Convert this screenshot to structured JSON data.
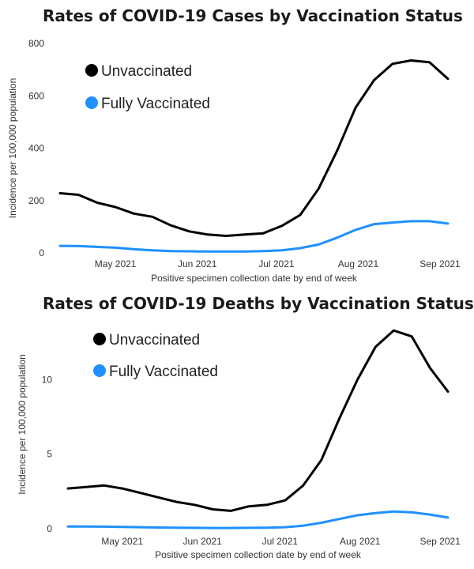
{
  "chart_data": [
    {
      "type": "line",
      "title": "Rates of COVID-19 Cases by Vaccination Status",
      "xlabel": "Positive specimen collection date by end of week",
      "ylabel": "Incidence per 100,000 population",
      "ylim": [
        0,
        800
      ],
      "yticks": [
        0,
        200,
        400,
        600,
        800
      ],
      "xticks": [
        "May 2021",
        "Jun 2021",
        "Jul 2021",
        "Aug 2021",
        "Sep 2021"
      ],
      "x": [
        "2021-04-10",
        "2021-04-17",
        "2021-04-24",
        "2021-05-01",
        "2021-05-08",
        "2021-05-15",
        "2021-05-22",
        "2021-05-29",
        "2021-06-05",
        "2021-06-12",
        "2021-06-19",
        "2021-06-26",
        "2021-07-03",
        "2021-07-10",
        "2021-07-17",
        "2021-07-24",
        "2021-07-31",
        "2021-08-07",
        "2021-08-14",
        "2021-08-21",
        "2021-08-28",
        "2021-09-04"
      ],
      "series": [
        {
          "name": "Unvaccinated",
          "color": "#000000",
          "values": [
            228,
            222,
            192,
            175,
            150,
            138,
            105,
            82,
            70,
            65,
            70,
            75,
            103,
            145,
            245,
            390,
            555,
            660,
            722,
            735,
            728,
            665
          ]
        },
        {
          "name": "Fully Vaccinated",
          "color": "#1e90ff",
          "values": [
            27,
            26,
            23,
            20,
            14,
            10,
            7,
            6,
            5,
            5,
            5,
            7,
            10,
            18,
            32,
            58,
            88,
            110,
            116,
            121,
            121,
            112
          ]
        }
      ],
      "legend_position": "top-left",
      "grid": false
    },
    {
      "type": "line",
      "title": "Rates of COVID-19 Deaths by Vaccination Status",
      "xlabel": "Positive specimen collection date by end of week",
      "ylabel": "Incidence per 100,000 population",
      "ylim": [
        0,
        14
      ],
      "yticks": [
        0,
        5,
        10
      ],
      "xticks": [
        "May 2021",
        "Jun 2021",
        "Jul 2021",
        "Aug 2021",
        "Sep 2021"
      ],
      "x": [
        "2021-04-10",
        "2021-04-17",
        "2021-04-24",
        "2021-05-01",
        "2021-05-08",
        "2021-05-15",
        "2021-05-22",
        "2021-05-29",
        "2021-06-05",
        "2021-06-12",
        "2021-06-19",
        "2021-06-26",
        "2021-07-03",
        "2021-07-10",
        "2021-07-17",
        "2021-07-24",
        "2021-07-31",
        "2021-08-07",
        "2021-08-14",
        "2021-08-21",
        "2021-08-28",
        "2021-09-04"
      ],
      "series": [
        {
          "name": "Unvaccinated",
          "color": "#000000",
          "values": [
            2.7,
            2.8,
            2.9,
            2.7,
            2.4,
            2.1,
            1.8,
            1.6,
            1.3,
            1.2,
            1.5,
            1.6,
            1.9,
            2.9,
            4.6,
            7.4,
            10.0,
            12.2,
            13.3,
            12.9,
            10.8,
            9.2
          ]
        },
        {
          "name": "Fully Vaccinated",
          "color": "#1e90ff",
          "values": [
            0.15,
            0.15,
            0.14,
            0.12,
            0.1,
            0.08,
            0.07,
            0.06,
            0.05,
            0.05,
            0.06,
            0.07,
            0.1,
            0.2,
            0.4,
            0.65,
            0.9,
            1.05,
            1.15,
            1.1,
            0.95,
            0.75
          ]
        }
      ],
      "legend_position": "top-left",
      "grid": false
    }
  ]
}
